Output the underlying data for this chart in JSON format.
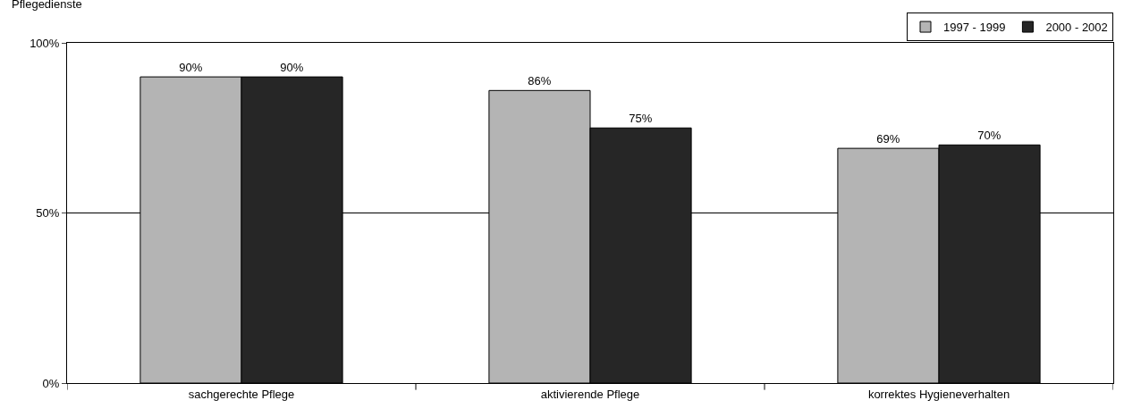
{
  "chart_data": {
    "type": "bar",
    "ylabel": "Pflegedienste",
    "categories": [
      "sachgerechte Pflege",
      "aktivierende Pflege",
      "korrektes Hygieneverhalten"
    ],
    "series": [
      {
        "name": "1997 - 1999",
        "color": "#b4b4b4",
        "values": [
          90,
          86,
          69
        ],
        "value_labels": [
          "90%",
          "86%",
          "69%"
        ]
      },
      {
        "name": "2000 - 2002",
        "color": "#262626",
        "values": [
          90,
          75,
          70
        ],
        "value_labels": [
          "90%",
          "75%",
          "70%"
        ]
      }
    ],
    "ylim": [
      0,
      100
    ],
    "yticks": [
      {
        "value": 0,
        "label": "0%"
      },
      {
        "value": 50,
        "label": "50%"
      },
      {
        "value": 100,
        "label": "100%"
      }
    ],
    "grid": "y",
    "legend": "top right"
  }
}
